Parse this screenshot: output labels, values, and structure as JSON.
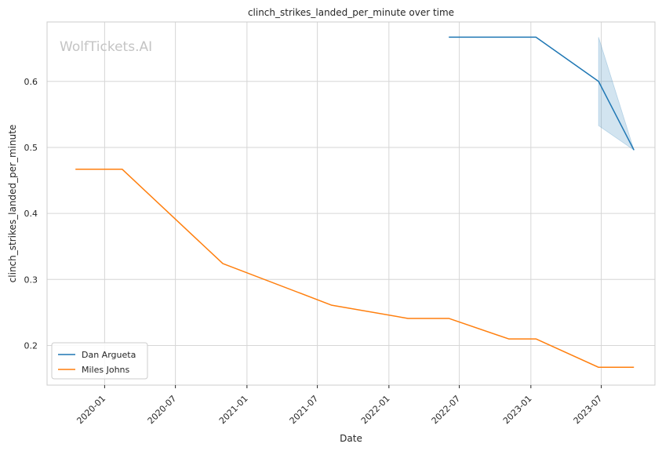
{
  "chart_data": {
    "type": "line",
    "title": "clinch_strikes_landed_per_minute over time",
    "xlabel": "Date",
    "ylabel": "clinch_strikes_landed_per_minute",
    "watermark": "WolfTickets.AI",
    "xlim": [
      "2019-08-06",
      "2023-11-16"
    ],
    "ylim": [
      0.14,
      0.69
    ],
    "x_ticks": [
      "2020-01",
      "2020-07",
      "2021-01",
      "2021-07",
      "2022-01",
      "2022-07",
      "2023-01",
      "2023-07"
    ],
    "y_ticks": [
      0.2,
      0.3,
      0.4,
      0.5,
      0.6
    ],
    "grid": true,
    "legend_position": "lower-left",
    "series": [
      {
        "name": "Dan Argueta",
        "color": "#1f77b4",
        "points": [
          {
            "x": "2022-06-04",
            "y": 0.667
          },
          {
            "x": "2023-01-14",
            "y": 0.667
          },
          {
            "x": "2023-06-24",
            "y": 0.6
          },
          {
            "x": "2023-09-23",
            "y": 0.496
          }
        ],
        "confidence_band": [
          {
            "x": "2023-06-24",
            "low": 0.533,
            "high": 0.667
          },
          {
            "x": "2023-09-23",
            "low": 0.496,
            "high": 0.496
          }
        ]
      },
      {
        "name": "Miles Johns",
        "color": "#ff7f0e",
        "points": [
          {
            "x": "2019-10-18",
            "y": 0.467
          },
          {
            "x": "2020-02-15",
            "y": 0.467
          },
          {
            "x": "2020-10-31",
            "y": 0.324
          },
          {
            "x": "2021-08-07",
            "y": 0.261
          },
          {
            "x": "2022-02-19",
            "y": 0.241
          },
          {
            "x": "2022-06-04",
            "y": 0.241
          },
          {
            "x": "2022-11-05",
            "y": 0.21
          },
          {
            "x": "2023-01-14",
            "y": 0.21
          },
          {
            "x": "2023-06-24",
            "y": 0.167
          },
          {
            "x": "2023-09-23",
            "y": 0.167
          }
        ]
      }
    ]
  }
}
